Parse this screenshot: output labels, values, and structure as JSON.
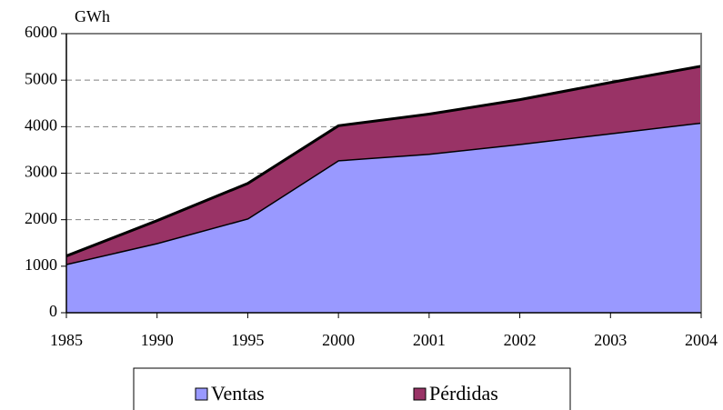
{
  "chart_data": {
    "type": "stacked-area",
    "y_label": "GWh",
    "categories": [
      "1985",
      "1990",
      "1995",
      "2000",
      "2001",
      "2002",
      "2003",
      "2004"
    ],
    "series": [
      {
        "name": "Ventas",
        "color": "#9999ff",
        "values": [
          1050,
          1500,
          2030,
          3280,
          3420,
          3630,
          3860,
          4090
        ]
      },
      {
        "name": "Pérdidas",
        "color": "#993366",
        "values": [
          170,
          480,
          750,
          740,
          850,
          950,
          1090,
          1210
        ]
      }
    ],
    "ylim": [
      0,
      6000
    ],
    "yticks": [
      0,
      1000,
      2000,
      3000,
      4000,
      5000,
      6000
    ],
    "grid": true
  }
}
